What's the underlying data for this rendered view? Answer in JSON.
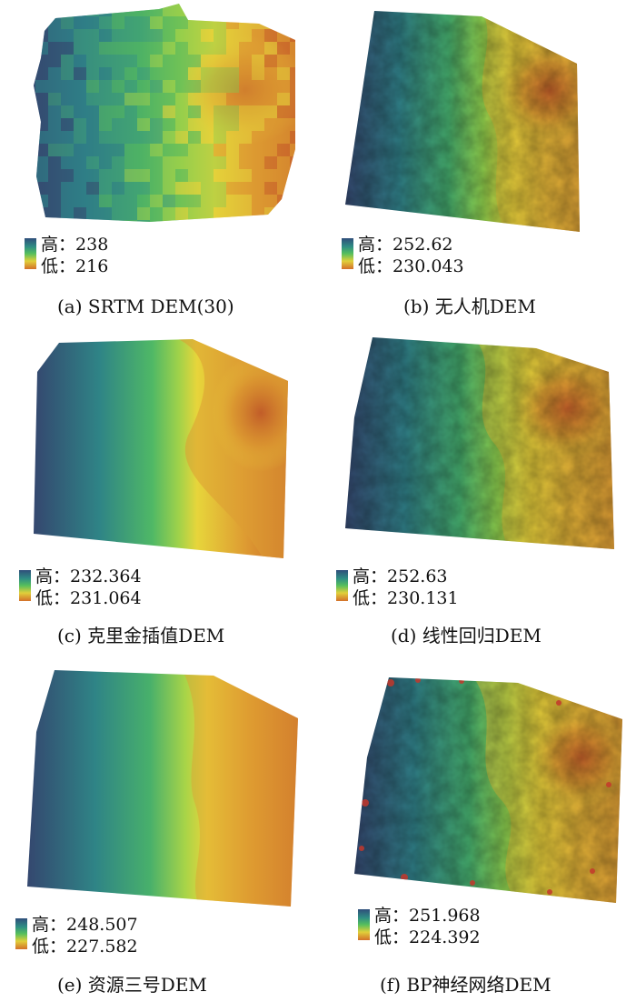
{
  "panels": [
    {
      "caption": "(a) SRTM DEM(30)",
      "legend": {
        "high_label": "高：",
        "high_value": "238",
        "low_label": "低：",
        "low_value": "216"
      }
    },
    {
      "caption": "(b) 无人机DEM",
      "legend": {
        "high_label": "高：",
        "high_value": "252.62",
        "low_label": "低：",
        "low_value": "230.043"
      }
    },
    {
      "caption": "(c) 克里金插值DEM",
      "legend": {
        "high_label": "高：",
        "high_value": "232.364",
        "low_label": "低：",
        "low_value": "231.064"
      }
    },
    {
      "caption": "(d) 线性回归DEM",
      "legend": {
        "high_label": "高：",
        "high_value": "252.63",
        "low_label": "低：",
        "low_value": "230.131"
      }
    },
    {
      "caption": "(e) 资源三号DEM",
      "legend": {
        "high_label": "高：",
        "high_value": "248.507",
        "low_label": "低：",
        "low_value": "227.582"
      }
    },
    {
      "caption": "(f) BP神经网络DEM",
      "legend": {
        "high_label": "高：",
        "high_value": "251.968",
        "low_label": "低：",
        "low_value": "224.392"
      }
    }
  ],
  "colors": {
    "high": "#2f4e7a",
    "mid": "#56bf5c",
    "low": "#d4702a"
  }
}
